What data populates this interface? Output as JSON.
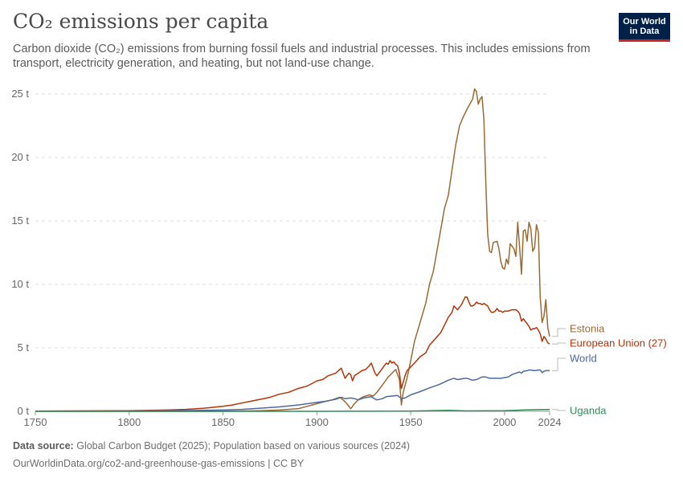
{
  "header": {
    "title": "CO₂ emissions per capita",
    "subtitle": "Carbon dioxide (CO₂) emissions from burning fossil fuels and industrial processes. This includes emissions from transport, electricity generation, and heating, but not land-use change.",
    "logo_line1": "Our World",
    "logo_line2": "in Data"
  },
  "footer": {
    "source_label": "Data source:",
    "source_text": "Global Carbon Budget (2025); Population based on various sources (2024)",
    "url_line": "OurWorldinData.org/co2-and-greenhouse-gas-emissions | CC BY"
  },
  "chart_data": {
    "type": "line",
    "title": "CO₂ emissions per capita",
    "xlim": [
      1750,
      2024
    ],
    "ylim": [
      0,
      25
    ],
    "x_ticks": [
      1750,
      1800,
      1850,
      1900,
      1950,
      2000,
      2024
    ],
    "y_ticks": [
      0,
      5,
      10,
      15,
      20,
      25
    ],
    "y_tick_labels": [
      "0 t",
      "5 t",
      "10 t",
      "15 t",
      "20 t",
      "25 t"
    ],
    "grid": true,
    "legend": "right, inline labels at line ends",
    "series": [
      {
        "name": "Estonia",
        "color": "#9a6a34",
        "points": [
          [
            1750,
            0
          ],
          [
            1850,
            0
          ],
          [
            1870,
            0.05
          ],
          [
            1880,
            0.1
          ],
          [
            1890,
            0.2
          ],
          [
            1895,
            0.4
          ],
          [
            1900,
            0.6
          ],
          [
            1905,
            0.8
          ],
          [
            1908,
            0.9
          ],
          [
            1912,
            1.1
          ],
          [
            1914,
            0.9
          ],
          [
            1916,
            0.6
          ],
          [
            1918,
            0.2
          ],
          [
            1920,
            0.6
          ],
          [
            1922,
            0.9
          ],
          [
            1924,
            1.1
          ],
          [
            1926,
            1.2
          ],
          [
            1928,
            1.3
          ],
          [
            1930,
            1.2
          ],
          [
            1932,
            1.5
          ],
          [
            1934,
            1.9
          ],
          [
            1936,
            2.3
          ],
          [
            1938,
            2.7
          ],
          [
            1940,
            3.0
          ],
          [
            1942,
            3.3
          ],
          [
            1944,
            2.5
          ],
          [
            1945,
            0.5
          ],
          [
            1946,
            1.5
          ],
          [
            1948,
            2.6
          ],
          [
            1950,
            4.0
          ],
          [
            1952,
            5.5
          ],
          [
            1955,
            7.0
          ],
          [
            1958,
            8.5
          ],
          [
            1960,
            10.0
          ],
          [
            1962,
            11.0
          ],
          [
            1965,
            13.5
          ],
          [
            1968,
            16.0
          ],
          [
            1970,
            17.0
          ],
          [
            1972,
            19.0
          ],
          [
            1974,
            21.0
          ],
          [
            1976,
            22.5
          ],
          [
            1978,
            23.2
          ],
          [
            1980,
            23.8
          ],
          [
            1983,
            24.6
          ],
          [
            1984,
            25.4
          ],
          [
            1985,
            25.2
          ],
          [
            1986,
            24.2
          ],
          [
            1987,
            24.6
          ],
          [
            1988,
            24.8
          ],
          [
            1989,
            23.0
          ],
          [
            1990,
            18.0
          ],
          [
            1991,
            14.0
          ],
          [
            1992,
            12.6
          ],
          [
            1993,
            12.5
          ],
          [
            1994,
            13.3
          ],
          [
            1996,
            13.4
          ],
          [
            1997,
            12.8
          ],
          [
            1998,
            11.8
          ],
          [
            1999,
            11.3
          ],
          [
            2000,
            11.2
          ],
          [
            2001,
            12.0
          ],
          [
            2002,
            11.6
          ],
          [
            2003,
            13.2
          ],
          [
            2004,
            13.0
          ],
          [
            2005,
            12.8
          ],
          [
            2006,
            12.2
          ],
          [
            2007,
            14.9
          ],
          [
            2008,
            13.0
          ],
          [
            2009,
            10.8
          ],
          [
            2010,
            14.2
          ],
          [
            2011,
            14.3
          ],
          [
            2012,
            13.4
          ],
          [
            2013,
            14.9
          ],
          [
            2014,
            14.4
          ],
          [
            2015,
            12.6
          ],
          [
            2016,
            12.9
          ],
          [
            2017,
            14.7
          ],
          [
            2018,
            14.1
          ],
          [
            2019,
            9.0
          ],
          [
            2020,
            7.0
          ],
          [
            2021,
            7.5
          ],
          [
            2022,
            8.8
          ],
          [
            2023,
            6.6
          ],
          [
            2024,
            5.9
          ]
        ]
      },
      {
        "name": "European Union (27)",
        "color": "#b13507",
        "points": [
          [
            1750,
            0.02
          ],
          [
            1800,
            0.05
          ],
          [
            1820,
            0.1
          ],
          [
            1830,
            0.15
          ],
          [
            1840,
            0.25
          ],
          [
            1850,
            0.4
          ],
          [
            1855,
            0.5
          ],
          [
            1860,
            0.65
          ],
          [
            1865,
            0.8
          ],
          [
            1870,
            0.95
          ],
          [
            1875,
            1.1
          ],
          [
            1880,
            1.35
          ],
          [
            1885,
            1.5
          ],
          [
            1890,
            1.8
          ],
          [
            1895,
            2.0
          ],
          [
            1900,
            2.4
          ],
          [
            1903,
            2.5
          ],
          [
            1906,
            2.8
          ],
          [
            1910,
            3.0
          ],
          [
            1913,
            3.4
          ],
          [
            1914,
            3.0
          ],
          [
            1915,
            2.6
          ],
          [
            1916,
            2.8
          ],
          [
            1917,
            3.0
          ],
          [
            1918,
            2.9
          ],
          [
            1919,
            2.4
          ],
          [
            1920,
            2.8
          ],
          [
            1922,
            3.0
          ],
          [
            1924,
            3.2
          ],
          [
            1926,
            3.3
          ],
          [
            1928,
            3.6
          ],
          [
            1929,
            3.8
          ],
          [
            1930,
            3.4
          ],
          [
            1931,
            3.0
          ],
          [
            1932,
            2.8
          ],
          [
            1933,
            3.0
          ],
          [
            1934,
            3.2
          ],
          [
            1935,
            3.4
          ],
          [
            1936,
            3.6
          ],
          [
            1937,
            3.8
          ],
          [
            1938,
            3.7
          ],
          [
            1939,
            4.0
          ],
          [
            1940,
            3.8
          ],
          [
            1941,
            3.9
          ],
          [
            1942,
            3.7
          ],
          [
            1943,
            3.6
          ],
          [
            1944,
            3.0
          ],
          [
            1945,
            1.8
          ],
          [
            1946,
            2.3
          ],
          [
            1947,
            2.8
          ],
          [
            1948,
            3.2
          ],
          [
            1950,
            3.5
          ],
          [
            1952,
            3.8
          ],
          [
            1955,
            4.3
          ],
          [
            1958,
            4.6
          ],
          [
            1960,
            5.2
          ],
          [
            1963,
            5.7
          ],
          [
            1966,
            6.2
          ],
          [
            1968,
            6.8
          ],
          [
            1970,
            7.4
          ],
          [
            1972,
            7.8
          ],
          [
            1973,
            8.3
          ],
          [
            1975,
            8.0
          ],
          [
            1977,
            8.4
          ],
          [
            1979,
            9.0
          ],
          [
            1980,
            9.0
          ],
          [
            1981,
            8.6
          ],
          [
            1982,
            8.3
          ],
          [
            1983,
            8.3
          ],
          [
            1984,
            8.4
          ],
          [
            1985,
            8.6
          ],
          [
            1986,
            8.5
          ],
          [
            1987,
            8.5
          ],
          [
            1988,
            8.4
          ],
          [
            1989,
            8.5
          ],
          [
            1990,
            8.4
          ],
          [
            1991,
            8.3
          ],
          [
            1992,
            8.0
          ],
          [
            1993,
            7.8
          ],
          [
            1994,
            7.8
          ],
          [
            1995,
            7.9
          ],
          [
            1996,
            8.1
          ],
          [
            1997,
            7.9
          ],
          [
            1998,
            7.9
          ],
          [
            1999,
            7.8
          ],
          [
            2000,
            7.9
          ],
          [
            2002,
            7.9
          ],
          [
            2004,
            8.0
          ],
          [
            2006,
            8.0
          ],
          [
            2007,
            7.9
          ],
          [
            2008,
            7.7
          ],
          [
            2009,
            7.1
          ],
          [
            2010,
            7.3
          ],
          [
            2011,
            7.1
          ],
          [
            2012,
            6.9
          ],
          [
            2013,
            6.7
          ],
          [
            2014,
            6.4
          ],
          [
            2015,
            6.5
          ],
          [
            2016,
            6.5
          ],
          [
            2017,
            6.6
          ],
          [
            2018,
            6.4
          ],
          [
            2019,
            6.1
          ],
          [
            2020,
            5.5
          ],
          [
            2021,
            5.9
          ],
          [
            2022,
            5.7
          ],
          [
            2023,
            5.4
          ],
          [
            2024,
            5.3
          ]
        ]
      },
      {
        "name": "World",
        "color": "#4c6a9c",
        "points": [
          [
            1750,
            0.01
          ],
          [
            1800,
            0.03
          ],
          [
            1820,
            0.05
          ],
          [
            1840,
            0.08
          ],
          [
            1850,
            0.1
          ],
          [
            1860,
            0.15
          ],
          [
            1870,
            0.25
          ],
          [
            1880,
            0.35
          ],
          [
            1890,
            0.5
          ],
          [
            1900,
            0.7
          ],
          [
            1905,
            0.8
          ],
          [
            1910,
            0.95
          ],
          [
            1913,
            1.1
          ],
          [
            1915,
            1.0
          ],
          [
            1918,
            1.05
          ],
          [
            1920,
            1.0
          ],
          [
            1922,
            0.9
          ],
          [
            1925,
            1.05
          ],
          [
            1929,
            1.15
          ],
          [
            1930,
            1.05
          ],
          [
            1932,
            0.9
          ],
          [
            1935,
            1.0
          ],
          [
            1937,
            1.15
          ],
          [
            1940,
            1.2
          ],
          [
            1943,
            1.25
          ],
          [
            1945,
            1.0
          ],
          [
            1947,
            1.05
          ],
          [
            1950,
            1.3
          ],
          [
            1955,
            1.55
          ],
          [
            1960,
            1.85
          ],
          [
            1965,
            2.1
          ],
          [
            1970,
            2.45
          ],
          [
            1973,
            2.6
          ],
          [
            1975,
            2.5
          ],
          [
            1979,
            2.6
          ],
          [
            1980,
            2.6
          ],
          [
            1983,
            2.45
          ],
          [
            1985,
            2.5
          ],
          [
            1988,
            2.7
          ],
          [
            1990,
            2.7
          ],
          [
            1992,
            2.6
          ],
          [
            1995,
            2.6
          ],
          [
            1998,
            2.6
          ],
          [
            2000,
            2.65
          ],
          [
            2002,
            2.7
          ],
          [
            2004,
            2.9
          ],
          [
            2006,
            3.0
          ],
          [
            2008,
            3.1
          ],
          [
            2009,
            3.0
          ],
          [
            2010,
            3.15
          ],
          [
            2012,
            3.2
          ],
          [
            2013,
            3.25
          ],
          [
            2014,
            3.25
          ],
          [
            2016,
            3.2
          ],
          [
            2018,
            3.25
          ],
          [
            2019,
            3.25
          ],
          [
            2020,
            3.05
          ],
          [
            2021,
            3.15
          ],
          [
            2022,
            3.2
          ],
          [
            2023,
            3.2
          ],
          [
            2024,
            3.2
          ]
        ]
      },
      {
        "name": "Uganda",
        "color": "#2e8b57",
        "points": [
          [
            1750,
            0
          ],
          [
            1900,
            0
          ],
          [
            1950,
            0.02
          ],
          [
            1960,
            0.05
          ],
          [
            1970,
            0.08
          ],
          [
            1975,
            0.06
          ],
          [
            1980,
            0.03
          ],
          [
            1990,
            0.04
          ],
          [
            2000,
            0.05
          ],
          [
            2010,
            0.1
          ],
          [
            2020,
            0.13
          ],
          [
            2024,
            0.14
          ]
        ]
      }
    ]
  }
}
